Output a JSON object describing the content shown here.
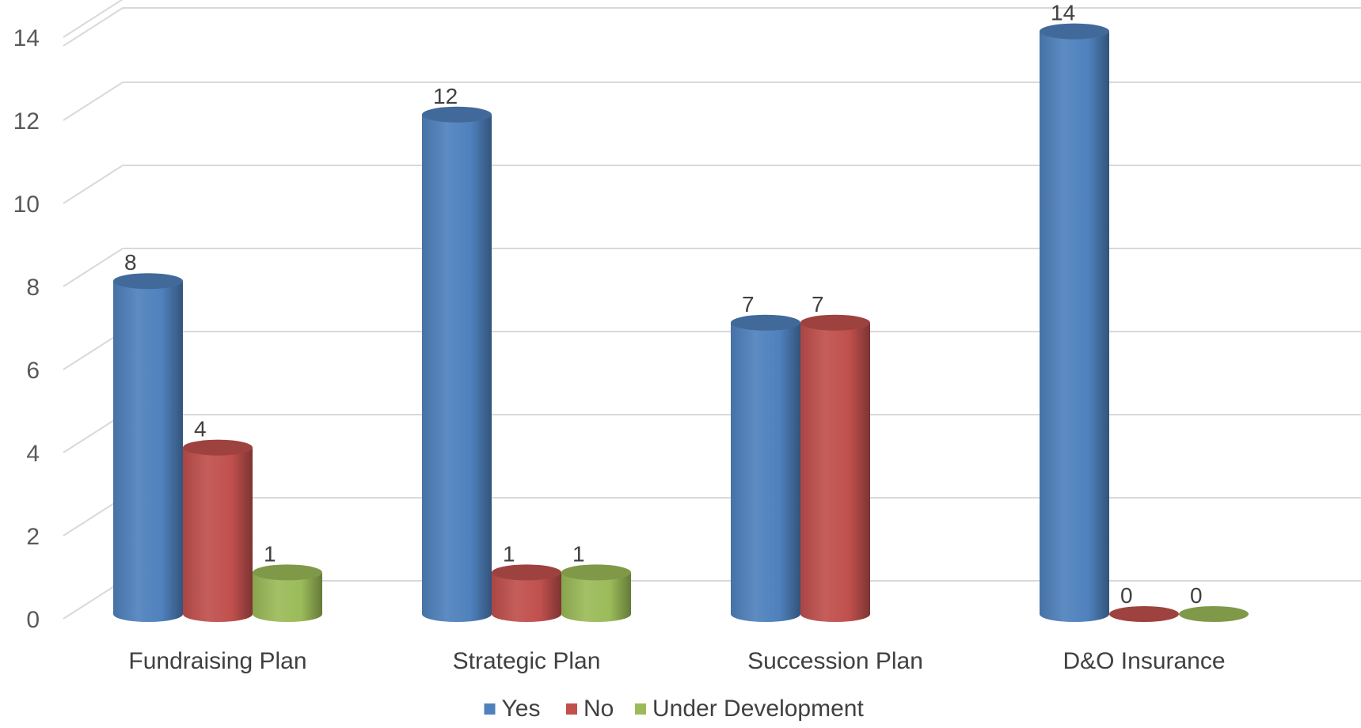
{
  "chart_data": {
    "type": "bar",
    "style": "3d-cylinder",
    "categories": [
      "Fundraising Plan",
      "Strategic Plan",
      "Succession Plan",
      "D&O Insurance"
    ],
    "series": [
      {
        "name": "Yes",
        "color": "#4F81BD",
        "values": [
          8,
          12,
          7,
          14
        ]
      },
      {
        "name": "No",
        "color": "#C0504D",
        "values": [
          4,
          1,
          7,
          0
        ]
      },
      {
        "name": "Under Development",
        "color": "#9BBB59",
        "values": [
          1,
          1,
          null,
          0
        ]
      }
    ],
    "ylim": [
      0,
      14
    ],
    "yticks": [
      0,
      2,
      4,
      6,
      8,
      10,
      12,
      14
    ],
    "grid": true,
    "legend": "bottom"
  }
}
